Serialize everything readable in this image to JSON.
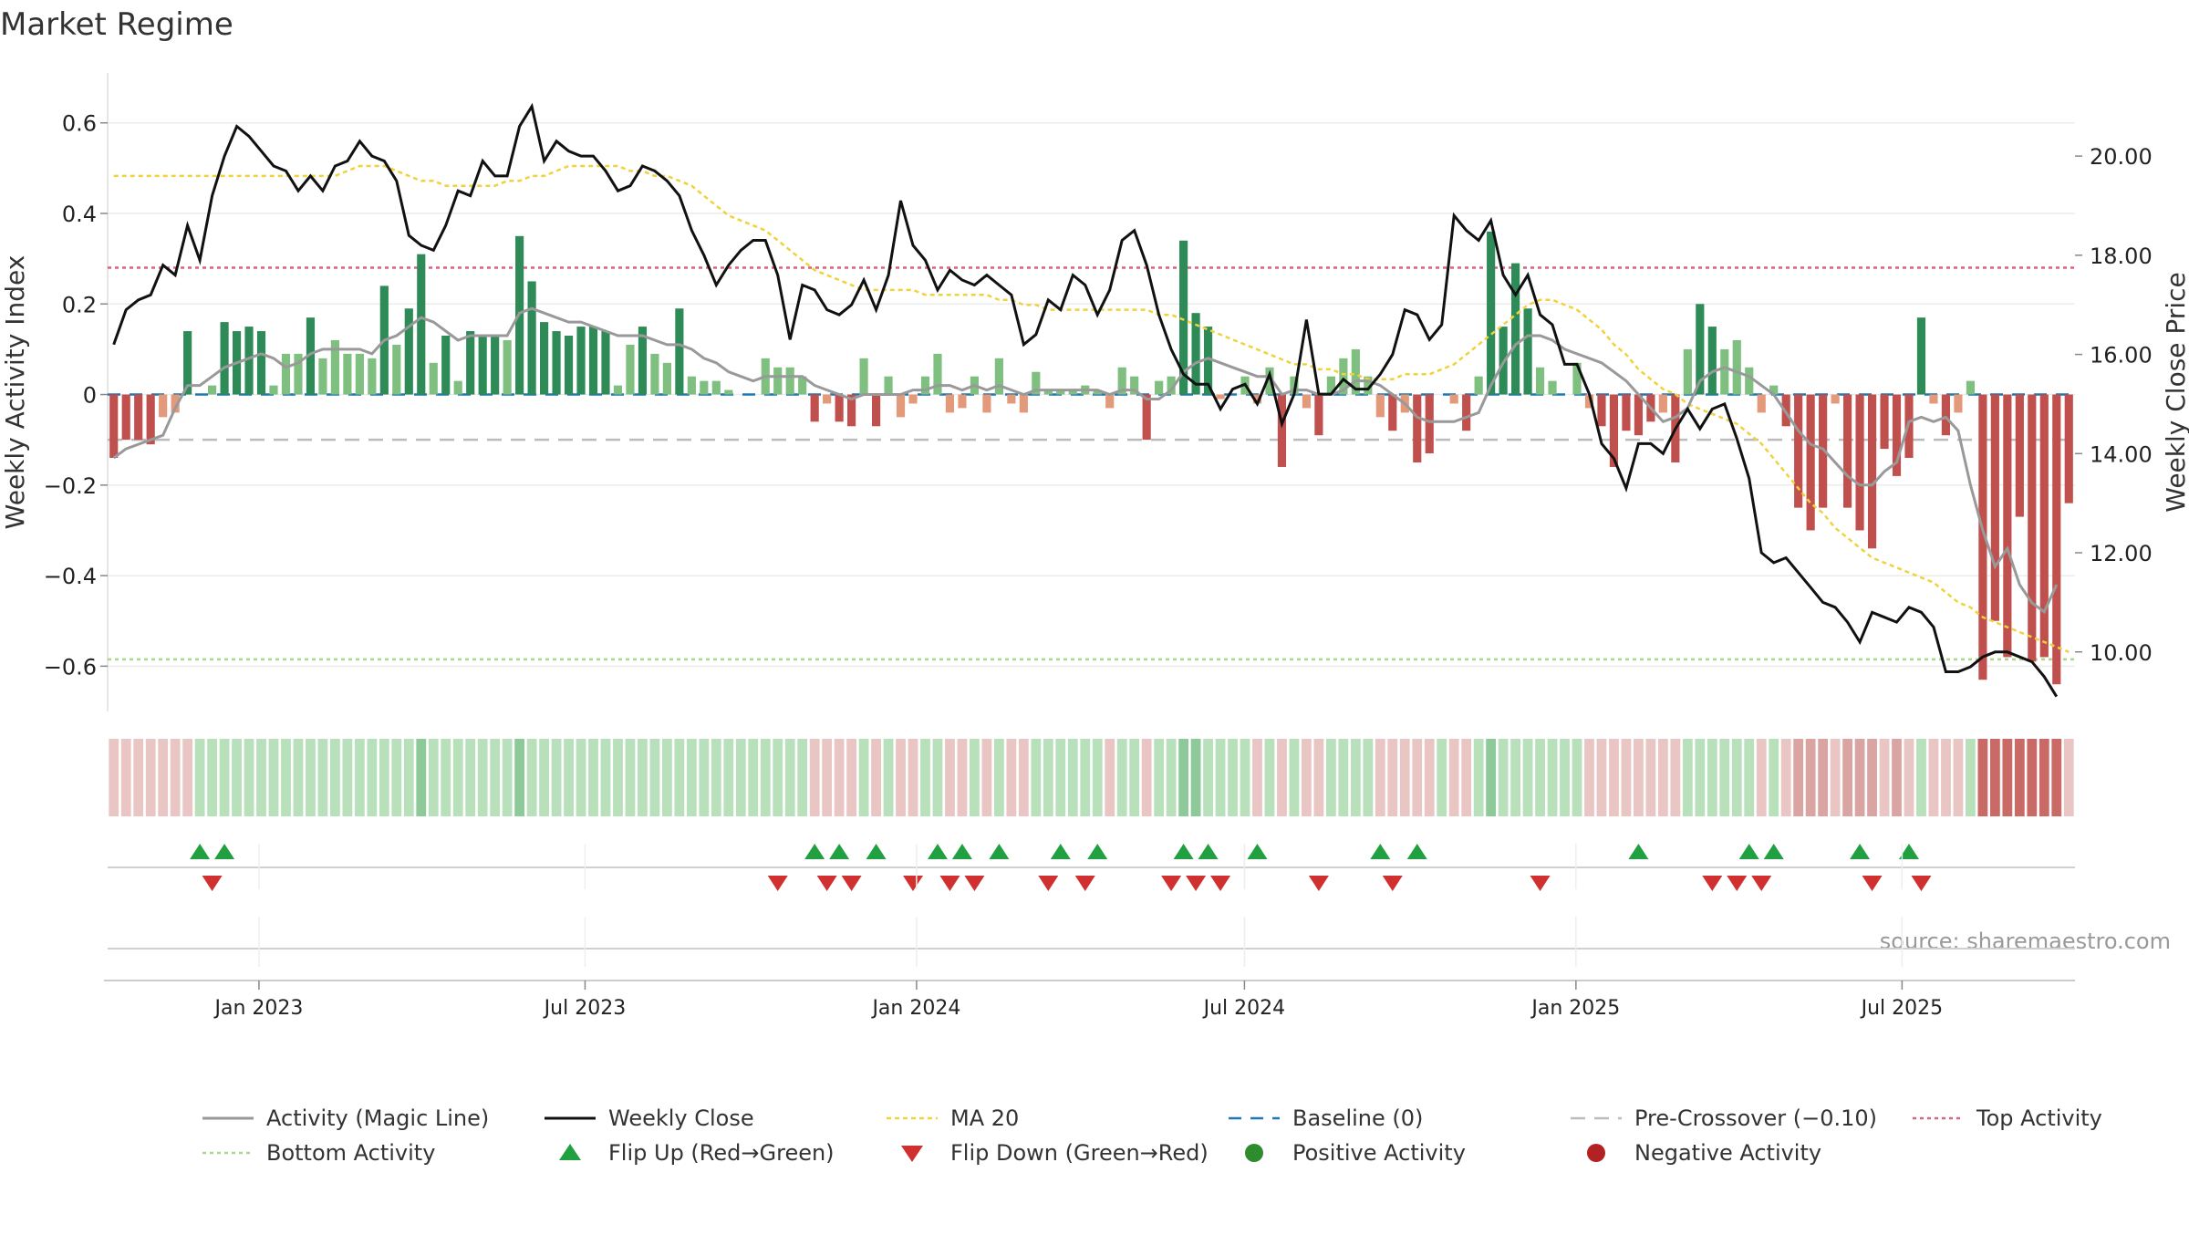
{
  "title": "Market Regime",
  "source": "source: sharemaestro.com",
  "colors": {
    "strong_pos": "#2e8b57",
    "weak_pos": "#7fbf7f",
    "strong_neg": "#c0504d",
    "weak_neg": "#e39a7a",
    "close_line": "#111111",
    "magic_line": "#999999",
    "ma20": "#f0d23c",
    "baseline": "#1f77b4",
    "pre_crossover": "#bbbbbb",
    "top_activity": "#d9647a",
    "bottom_activity": "#a8d88a",
    "flip_up": "#20a040",
    "flip_down": "#d03030",
    "positive_dot": "#2e8b2e",
    "negative_dot": "#b22222"
  },
  "chart_data": {
    "type": "bar",
    "x_start": "2022-10-09",
    "x_end": "2025-10-05",
    "x_ticks": [
      {
        "date": "2023-01-01",
        "label": "Jan 2023"
      },
      {
        "date": "2023-07-01",
        "label": "Jul 2023"
      },
      {
        "date": "2024-01-01",
        "label": "Jan 2024"
      },
      {
        "date": "2024-07-01",
        "label": "Jul 2024"
      },
      {
        "date": "2025-01-01",
        "label": "Jan 2025"
      },
      {
        "date": "2025-07-01",
        "label": "Jul 2025"
      }
    ],
    "y_left": {
      "label": "Weekly Activity Index",
      "lim": [
        -0.7,
        0.68
      ],
      "ticks": [
        0.6,
        0.4,
        0.2,
        0,
        -0.2,
        -0.4,
        -0.6
      ],
      "tick_labels": [
        "0.6",
        "0.4",
        "0.2",
        "0",
        "−0.2",
        "−0.4",
        "−0.6"
      ]
    },
    "y_right": {
      "label": "Weekly Close Price",
      "lim": [
        8.8,
        21.4
      ],
      "ticks": [
        20,
        18,
        16,
        14,
        12,
        10
      ],
      "tick_labels": [
        "20.00",
        "18.00",
        "16.00",
        "14.00",
        "12.00",
        "10.00"
      ]
    },
    "levels": {
      "baseline": 0,
      "pre_crossover": -0.1,
      "top_activity": 0.28,
      "bottom_activity": -0.585
    },
    "activity": [
      -0.14,
      -0.1,
      -0.1,
      -0.11,
      -0.05,
      -0.04,
      0.14,
      0.0,
      0.02,
      0.16,
      0.14,
      0.15,
      0.14,
      0.02,
      0.09,
      0.09,
      0.17,
      0.08,
      0.12,
      0.09,
      0.09,
      0.08,
      0.24,
      0.11,
      0.19,
      0.31,
      0.07,
      0.13,
      0.03,
      0.14,
      0.13,
      0.13,
      0.12,
      0.35,
      0.25,
      0.16,
      0.14,
      0.13,
      0.15,
      0.15,
      0.14,
      0.02,
      0.11,
      0.15,
      0.09,
      0.07,
      0.19,
      0.04,
      0.03,
      0.03,
      0.01,
      0.0,
      0.0,
      0.08,
      0.06,
      0.06,
      0.04,
      -0.06,
      -0.02,
      -0.06,
      -0.07,
      0.08,
      -0.07,
      0.04,
      -0.05,
      -0.02,
      0.04,
      0.09,
      -0.04,
      -0.03,
      0.04,
      -0.04,
      0.08,
      -0.02,
      -0.04,
      0.05,
      0.01,
      0.01,
      0.01,
      0.02,
      0.01,
      -0.03,
      0.06,
      0.04,
      -0.1,
      0.03,
      0.04,
      0.34,
      0.18,
      0.15,
      -0.01,
      0.0,
      0.04,
      -0.02,
      0.06,
      -0.16,
      0.04,
      -0.03,
      -0.09,
      0.04,
      0.08,
      0.1,
      0.04,
      -0.05,
      -0.08,
      -0.04,
      -0.15,
      -0.13,
      0.0,
      -0.02,
      -0.08,
      0.04,
      0.36,
      0.15,
      0.29,
      0.19,
      0.06,
      0.03,
      0.0,
      0.07,
      -0.03,
      -0.07,
      -0.16,
      -0.08,
      -0.09,
      -0.06,
      -0.04,
      -0.15,
      0.1,
      0.2,
      0.15,
      0.1,
      0.12,
      0.06,
      -0.04,
      0.02,
      -0.07,
      -0.25,
      -0.3,
      -0.25,
      -0.02,
      -0.25,
      -0.3,
      -0.34,
      -0.12,
      -0.18,
      -0.14,
      0.17,
      -0.02,
      -0.09,
      -0.04,
      0.03,
      -0.63,
      -0.5,
      -0.58,
      -0.27,
      -0.59,
      -0.58,
      -0.64,
      -0.24
    ],
    "magic_line": [
      -0.14,
      -0.12,
      -0.11,
      -0.1,
      -0.09,
      -0.03,
      0.02,
      0.02,
      0.04,
      0.06,
      0.07,
      0.08,
      0.09,
      0.08,
      0.06,
      0.07,
      0.09,
      0.1,
      0.1,
      0.1,
      0.1,
      0.09,
      0.12,
      0.13,
      0.15,
      0.17,
      0.16,
      0.14,
      0.12,
      0.13,
      0.13,
      0.13,
      0.13,
      0.18,
      0.19,
      0.18,
      0.17,
      0.16,
      0.16,
      0.15,
      0.14,
      0.13,
      0.13,
      0.13,
      0.12,
      0.11,
      0.11,
      0.1,
      0.08,
      0.07,
      0.05,
      0.04,
      0.03,
      0.04,
      0.04,
      0.04,
      0.04,
      0.02,
      0.01,
      0.0,
      -0.01,
      0.0,
      0.0,
      0.0,
      0.0,
      0.01,
      0.01,
      0.02,
      0.02,
      0.01,
      0.02,
      0.01,
      0.02,
      0.01,
      0.0,
      0.01,
      0.01,
      0.01,
      0.01,
      0.01,
      0.01,
      0.0,
      0.01,
      0.01,
      -0.01,
      -0.01,
      0.01,
      0.05,
      0.07,
      0.08,
      0.07,
      0.06,
      0.05,
      0.04,
      0.04,
      0.0,
      0.01,
      0.01,
      0.0,
      0.0,
      0.01,
      0.03,
      0.03,
      0.02,
      0.0,
      -0.02,
      -0.05,
      -0.06,
      -0.06,
      -0.06,
      -0.05,
      -0.04,
      0.02,
      0.07,
      0.11,
      0.13,
      0.13,
      0.12,
      0.1,
      0.09,
      0.08,
      0.07,
      0.05,
      0.03,
      0.0,
      -0.03,
      -0.06,
      -0.05,
      -0.03,
      0.03,
      0.05,
      0.06,
      0.05,
      0.04,
      0.02,
      0.0,
      -0.04,
      -0.08,
      -0.11,
      -0.12,
      -0.15,
      -0.18,
      -0.2,
      -0.2,
      -0.17,
      -0.15,
      -0.06,
      -0.05,
      -0.06,
      -0.05,
      -0.08,
      -0.2,
      -0.3,
      -0.38,
      -0.34,
      -0.42,
      -0.46,
      -0.48,
      -0.42
    ],
    "close": [
      16.2,
      16.9,
      17.1,
      17.2,
      17.8,
      17.6,
      18.6,
      17.9,
      19.2,
      20.0,
      20.6,
      20.4,
      20.1,
      19.8,
      19.7,
      19.3,
      19.6,
      19.3,
      19.8,
      19.9,
      20.3,
      20.0,
      19.9,
      19.5,
      18.4,
      18.2,
      18.1,
      18.6,
      19.3,
      19.2,
      19.9,
      19.6,
      19.6,
      20.6,
      21.0,
      19.9,
      20.3,
      20.1,
      20.0,
      20.0,
      19.7,
      19.3,
      19.4,
      19.8,
      19.7,
      19.5,
      19.2,
      18.5,
      18.0,
      17.4,
      17.8,
      18.1,
      18.3,
      18.3,
      17.6,
      16.3,
      17.4,
      17.3,
      16.9,
      16.8,
      17.0,
      17.5,
      16.9,
      17.6,
      19.1,
      18.2,
      17.9,
      17.3,
      17.7,
      17.5,
      17.4,
      17.6,
      17.4,
      17.2,
      16.2,
      16.4,
      17.1,
      16.9,
      17.6,
      17.4,
      16.8,
      17.3,
      18.3,
      18.5,
      17.8,
      16.8,
      16.1,
      15.6,
      15.4,
      15.4,
      14.9,
      15.3,
      15.4,
      15.0,
      15.6,
      14.6,
      15.2,
      16.7,
      15.2,
      15.2,
      15.5,
      15.3,
      15.3,
      15.6,
      16.0,
      16.9,
      16.8,
      16.3,
      16.6,
      18.8,
      18.5,
      18.3,
      18.7,
      17.6,
      17.2,
      17.6,
      16.8,
      16.6,
      15.8,
      15.8,
      15.2,
      14.2,
      13.9,
      13.3,
      14.2,
      14.2,
      14.0,
      14.5,
      14.9,
      14.5,
      14.9,
      15.0,
      14.3,
      13.5,
      12.0,
      11.8,
      11.9,
      11.6,
      11.3,
      11.0,
      10.9,
      10.6,
      10.2,
      10.8,
      10.7,
      10.6,
      10.9,
      10.8,
      10.5,
      9.6,
      9.6,
      9.7,
      9.9,
      10.0,
      10.0,
      9.9,
      9.8,
      9.5,
      9.1
    ],
    "ma20": [
      19.6,
      19.6,
      19.6,
      19.6,
      19.6,
      19.6,
      19.6,
      19.6,
      19.6,
      19.6,
      19.6,
      19.6,
      19.6,
      19.6,
      19.6,
      19.6,
      19.6,
      19.6,
      19.6,
      19.7,
      19.8,
      19.8,
      19.8,
      19.7,
      19.6,
      19.5,
      19.5,
      19.4,
      19.4,
      19.4,
      19.4,
      19.4,
      19.5,
      19.5,
      19.6,
      19.6,
      19.7,
      19.8,
      19.8,
      19.8,
      19.8,
      19.8,
      19.7,
      19.7,
      19.6,
      19.6,
      19.5,
      19.4,
      19.2,
      19.0,
      18.8,
      18.7,
      18.6,
      18.5,
      18.3,
      18.1,
      17.9,
      17.7,
      17.6,
      17.5,
      17.4,
      17.3,
      17.3,
      17.3,
      17.3,
      17.3,
      17.2,
      17.2,
      17.2,
      17.2,
      17.2,
      17.2,
      17.1,
      17.1,
      17.0,
      17.0,
      16.9,
      16.9,
      16.9,
      16.9,
      16.9,
      16.9,
      16.9,
      16.9,
      16.9,
      16.8,
      16.8,
      16.7,
      16.6,
      16.5,
      16.4,
      16.3,
      16.2,
      16.1,
      16.0,
      15.9,
      15.8,
      15.8,
      15.7,
      15.7,
      15.6,
      15.6,
      15.5,
      15.5,
      15.5,
      15.6,
      15.6,
      15.6,
      15.7,
      15.8,
      16.0,
      16.2,
      16.4,
      16.6,
      16.8,
      17.0,
      17.1,
      17.1,
      17.0,
      16.9,
      16.7,
      16.5,
      16.2,
      16.0,
      15.7,
      15.5,
      15.3,
      15.2,
      15.0,
      14.9,
      14.8,
      14.7,
      14.6,
      14.4,
      14.2,
      13.9,
      13.6,
      13.3,
      13.0,
      12.8,
      12.5,
      12.3,
      12.1,
      11.9,
      11.8,
      11.7,
      11.6,
      11.5,
      11.4,
      11.2,
      11.0,
      10.9,
      10.7,
      10.6,
      10.5,
      10.4,
      10.3,
      10.2,
      10.1,
      10.0
    ],
    "regime_strip": [
      -1,
      -1,
      -1,
      -1,
      -1,
      -1,
      -1,
      1,
      1,
      1,
      1,
      1,
      1,
      1,
      1,
      1,
      1,
      1,
      1,
      1,
      1,
      1,
      1,
      1,
      1,
      2,
      1,
      1,
      1,
      1,
      1,
      1,
      1,
      2,
      1,
      1,
      1,
      1,
      1,
      1,
      1,
      1,
      1,
      1,
      1,
      1,
      1,
      1,
      1,
      1,
      1,
      1,
      1,
      1,
      1,
      1,
      1,
      -1,
      -1,
      -1,
      -1,
      1,
      -1,
      1,
      -1,
      -1,
      1,
      1,
      -1,
      -1,
      1,
      -1,
      1,
      -1,
      -1,
      1,
      1,
      1,
      1,
      1,
      1,
      -1,
      1,
      1,
      -1,
      1,
      1,
      2,
      2,
      1,
      1,
      1,
      1,
      -1,
      1,
      -1,
      1,
      -1,
      -1,
      1,
      1,
      1,
      1,
      -1,
      -1,
      -1,
      -1,
      -1,
      1,
      -1,
      -1,
      1,
      2,
      1,
      1,
      1,
      1,
      1,
      1,
      1,
      -1,
      -1,
      -1,
      -1,
      -1,
      -1,
      -1,
      -1,
      1,
      1,
      1,
      1,
      1,
      1,
      -1,
      1,
      -1,
      -2,
      -2,
      -2,
      -1,
      -2,
      -2,
      -2,
      -1,
      -2,
      -1,
      1,
      -1,
      -1,
      -1,
      1,
      -3,
      -3,
      -3,
      -3,
      -3,
      -3,
      -3,
      -1
    ],
    "flip_up": [
      7,
      9,
      57,
      59,
      62,
      67,
      69,
      72,
      77,
      80,
      87,
      89,
      93,
      103,
      106,
      124,
      133,
      135,
      142,
      146
    ],
    "flip_down": [
      8,
      54,
      58,
      60,
      65,
      68,
      70,
      76,
      79,
      86,
      88,
      90,
      98,
      104,
      116,
      130,
      132,
      134,
      143,
      147
    ]
  },
  "legend": [
    {
      "key": "magic",
      "label": "Activity (Magic Line)"
    },
    {
      "key": "close",
      "label": "Weekly Close"
    },
    {
      "key": "ma20",
      "label": "MA 20"
    },
    {
      "key": "baseline",
      "label": "Baseline (0)"
    },
    {
      "key": "pre",
      "label": "Pre-Crossover (−0.10)"
    },
    {
      "key": "top",
      "label": "Top Activity"
    },
    {
      "key": "bottom",
      "label": "Bottom Activity"
    },
    {
      "key": "flipup",
      "label": "Flip Up (Red→Green)"
    },
    {
      "key": "flipdown",
      "label": "Flip Down (Green→Red)"
    },
    {
      "key": "posdot",
      "label": "Positive Activity"
    },
    {
      "key": "negdot",
      "label": "Negative Activity"
    }
  ]
}
